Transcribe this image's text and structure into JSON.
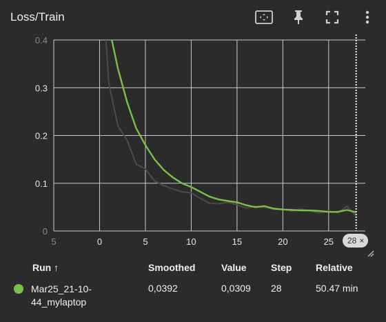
{
  "header": {
    "title": "Loss/Train",
    "icons": [
      "fit-domain-icon",
      "pin-icon",
      "fullscreen-icon",
      "more-vert-icon"
    ]
  },
  "chart_data": {
    "type": "line",
    "title": "Loss/Train",
    "xlabel": "",
    "ylabel": "",
    "xlim": [
      -5,
      29
    ],
    "ylim": [
      0,
      0.4
    ],
    "x_ticks": [
      "5",
      "0",
      "5",
      "10",
      "15",
      "20",
      "25"
    ],
    "y_ticks": [
      "0",
      "0.1",
      "0.2",
      "0.3",
      "0.4"
    ],
    "grid": true,
    "cursor_step": 28,
    "series": [
      {
        "name": "Mar25_21-10-44_mylaptop",
        "role": "raw",
        "color": "#4a4d44",
        "x": [
          0,
          1,
          2,
          3,
          4,
          5,
          6,
          7,
          8,
          9,
          10,
          11,
          12,
          13,
          14,
          15,
          16,
          17,
          18,
          19,
          20,
          21,
          22,
          23,
          24,
          25,
          26,
          27,
          28
        ],
        "y": [
          0.6,
          0.31,
          0.22,
          0.19,
          0.14,
          0.13,
          0.105,
          0.095,
          0.088,
          0.082,
          0.08,
          0.068,
          0.058,
          0.057,
          0.06,
          0.055,
          0.048,
          0.052,
          0.05,
          0.045,
          0.045,
          0.042,
          0.046,
          0.042,
          0.038,
          0.042,
          0.038,
          0.052,
          0.031
        ]
      },
      {
        "name": "Mar25_21-10-44_mylaptop",
        "role": "smoothed",
        "color": "#7cc04b",
        "x": [
          0,
          1,
          2,
          3,
          4,
          5,
          6,
          7,
          8,
          9,
          10,
          11,
          12,
          13,
          14,
          15,
          16,
          17,
          18,
          19,
          20,
          21,
          22,
          23,
          24,
          25,
          26,
          27,
          28
        ],
        "y": [
          0.6,
          0.43,
          0.34,
          0.27,
          0.215,
          0.18,
          0.15,
          0.128,
          0.112,
          0.1,
          0.092,
          0.082,
          0.072,
          0.066,
          0.063,
          0.06,
          0.054,
          0.05,
          0.052,
          0.047,
          0.045,
          0.044,
          0.043,
          0.043,
          0.042,
          0.04,
          0.04,
          0.044,
          0.0392
        ]
      }
    ]
  },
  "chip": {
    "label": "28",
    "close": "×"
  },
  "table": {
    "headers": {
      "run": "Run ↑",
      "smoothed": "Smoothed",
      "value": "Value",
      "step": "Step",
      "relative": "Relative"
    },
    "rows": [
      {
        "color": "#7cc04b",
        "name_line1": "Mar25_21-10-",
        "name_line2": "44_mylaptop",
        "smoothed": "0,0392",
        "value": "0,0309",
        "step": "28",
        "relative": "50.47 min"
      }
    ]
  }
}
